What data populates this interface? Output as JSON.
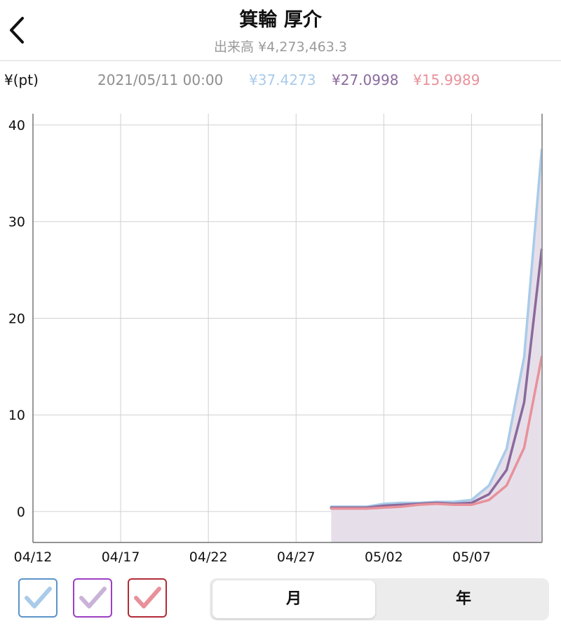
{
  "header": {
    "title": "箕輪 厚介",
    "volume": "出来高 ¥4,273,463.3"
  },
  "info": {
    "unit": "¥(pt)",
    "datetime": "2021/05/11 00:00",
    "values": [
      "¥37.4273",
      "¥27.0998",
      "¥15.9989"
    ]
  },
  "colors": {
    "series1": "#a9cbe9",
    "series2": "#8a6a9c",
    "series3": "#e8919a",
    "fill": "#e6dfea",
    "grid": "#d0d0d0"
  },
  "chart_data": {
    "type": "line",
    "x_ticks": [
      "04/12",
      "04/17",
      "04/22",
      "04/27",
      "05/02",
      "05/07"
    ],
    "x_range_days": [
      0,
      30
    ],
    "y_ticks": [
      0,
      10,
      20,
      30,
      40
    ],
    "ylim": [
      -3.2,
      40
    ],
    "grid": true,
    "x_days": [
      17,
      18,
      19,
      20,
      21,
      22,
      23,
      24,
      25,
      26,
      27,
      28,
      29
    ],
    "series": [
      {
        "color": "#a9cbe9",
        "values": [
          0.5,
          0.5,
          0.5,
          0.8,
          0.9,
          0.9,
          1.0,
          1.0,
          1.2,
          2.7,
          6.5,
          16.0,
          37.4273
        ]
      },
      {
        "color": "#8a6a9c",
        "values": [
          0.4,
          0.4,
          0.4,
          0.6,
          0.7,
          0.8,
          0.9,
          0.8,
          0.9,
          1.8,
          4.3,
          11.3,
          27.0998
        ]
      },
      {
        "color": "#e8919a",
        "values": [
          0.3,
          0.3,
          0.3,
          0.4,
          0.5,
          0.7,
          0.8,
          0.7,
          0.7,
          1.2,
          2.7,
          6.6,
          15.9989
        ]
      }
    ]
  },
  "controls": {
    "toggles": [
      {
        "color": "#5b95c9",
        "check_color": "#a9cbe9",
        "checked": true
      },
      {
        "color": "#9c3fc4",
        "check_color": "#c9b3d8",
        "checked": true
      },
      {
        "color": "#b22a37",
        "check_color": "#e8919a",
        "checked": true
      }
    ],
    "period": {
      "month": "月",
      "year": "年",
      "selected": "month"
    }
  }
}
